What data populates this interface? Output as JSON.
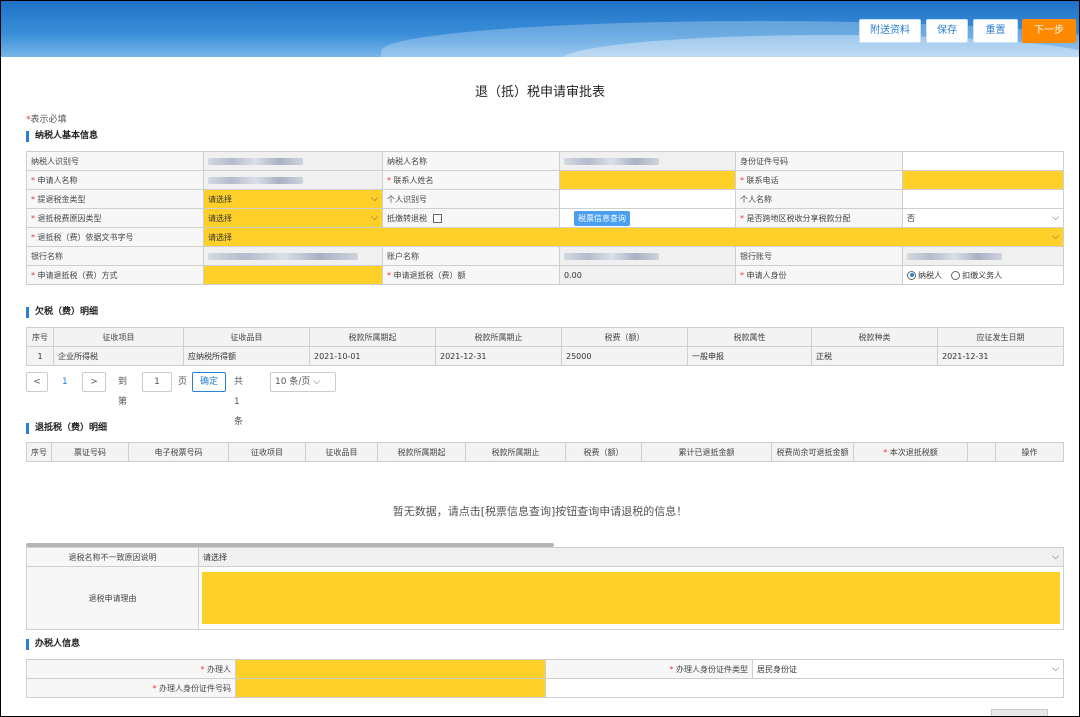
{
  "header": {
    "buttons": {
      "attach": "附送资料",
      "save": "保存",
      "reset": "重置",
      "next": "下一步"
    }
  },
  "title": "退（抵）税申请审批表",
  "required_note": {
    "star": "*",
    "text": "表示必填"
  },
  "sections": {
    "basic": "纳税人基本信息",
    "arrears": "欠税（费）明细",
    "refund": "退抵税（费）明细",
    "handler": "办税人信息"
  },
  "basic": {
    "taxpayer_id_label": "纳税人识别号",
    "taxpayer_name_label": "纳税人名称",
    "id_number_label": "身份证件号码",
    "applicant_name_label": "申请人名称",
    "contact_name_label": "联系人姓名",
    "contact_phone_label": "联系电话",
    "refund_type_label": "提退税金类型",
    "refund_type_value": "请选择",
    "personal_id_label": "个人识别号",
    "personal_name_label": "个人名称",
    "reason_type_label": "退抵税费原因类型",
    "reason_type_value": "请选择",
    "offset_label": "抵缴转退税",
    "query_button": "税票信息查询",
    "cross_region_label": "是否跨地区税收分享税款分配",
    "cross_region_value": "否",
    "doc_no_label": "退抵税（费）依据文书字号",
    "doc_no_value": "请选择",
    "bank_name_label": "银行名称",
    "account_name_label": "账户名称",
    "bank_account_label": "银行账号",
    "method_label": "申请退抵税（费）方式",
    "amount_label": "申请退抵税（费）额",
    "amount_value": "0.00",
    "identity_label": "申请人身份",
    "identity_options": [
      "纳税人",
      "扣缴义务人"
    ]
  },
  "arrears": {
    "columns": [
      "序号",
      "征收项目",
      "征收品目",
      "税款所属期起",
      "税款所属期止",
      "税费（额）",
      "税款属性",
      "税款种类",
      "应征发生日期"
    ],
    "rows": [
      [
        "1",
        "企业所得税",
        "应纳税所得额",
        "2021-10-01",
        "2021-12-31",
        "25000",
        "一般申报",
        "正税",
        "2021-12-31"
      ]
    ]
  },
  "pager": {
    "prev": "<",
    "page": "1",
    "next": ">",
    "goto_label": "到第",
    "goto_value": "1",
    "page_unit": "页",
    "confirm": "确定",
    "total": "共1条",
    "page_size": "10 条/页"
  },
  "refund": {
    "columns": [
      "序号",
      "票证号码",
      "电子税票号码",
      "征收项目",
      "征收品目",
      "税款所属期起",
      "税款所属期止",
      "税费（额）",
      "累计已退抵金额",
      "税费尚余可退抵金额",
      "本次退抵税额",
      "",
      "操作"
    ],
    "empty_text": "暂无数据，请点击[税票信息查询]按钮查询申请退税的信息！"
  },
  "reason": {
    "mismatch_label": "退税名称不一致原因说明",
    "mismatch_value": "请选择",
    "reason_label": "退税申请理由"
  },
  "handler": {
    "name_label": "办理人",
    "id_type_label": "办理人身份证件类型",
    "id_type_value": "居民身份证",
    "id_number_label": "办理人身份证件号码"
  }
}
